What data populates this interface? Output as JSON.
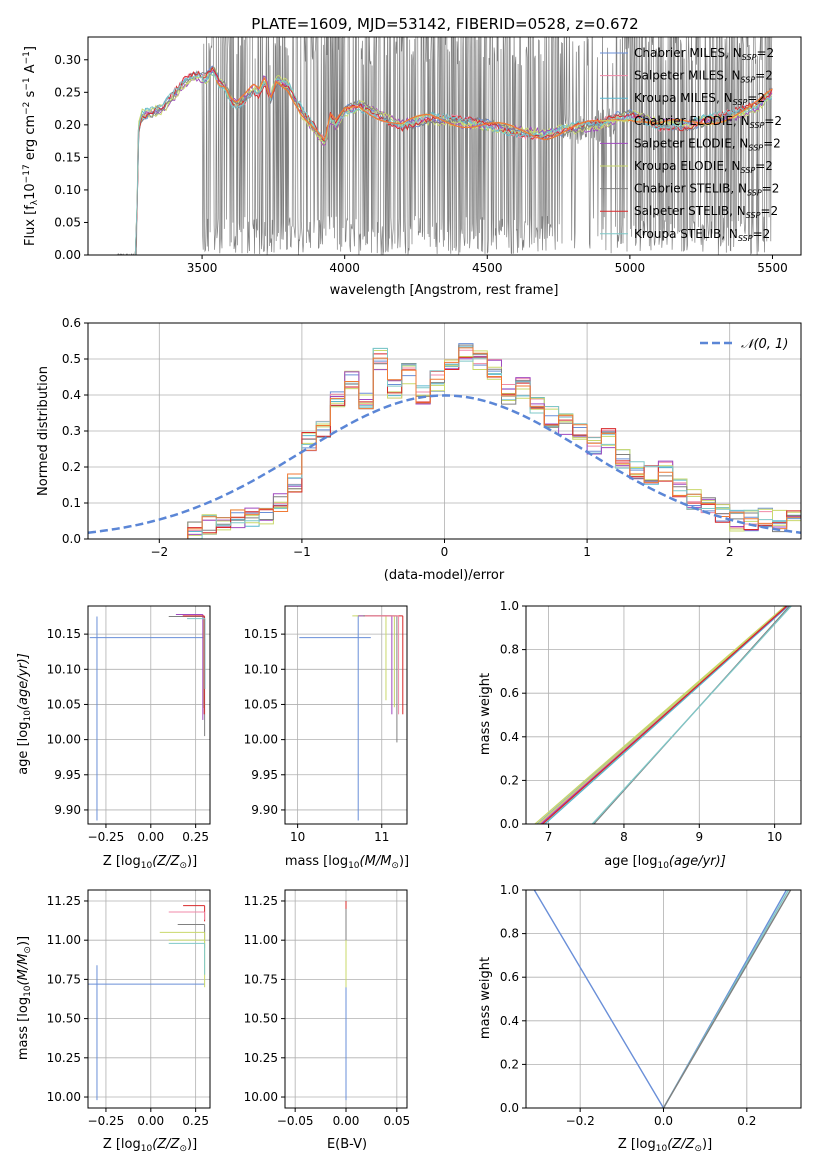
{
  "figure": {
    "title": "PLATE=1609, MJD=53142, FIBERID=0528, z=0.672",
    "legend_labels": [
      "Chabrier MILES",
      "Salpeter MILES",
      "Kroupa MILES",
      "Chabrier ELODIE",
      "Salpeter ELODIE",
      "Kroupa ELODIE",
      "Chabrier STELIB",
      "Salpeter STELIB",
      "Kroupa STELIB"
    ],
    "legend_suffix_base": ", N",
    "legend_suffix_sub": "SSP",
    "legend_suffix_tail": "=2"
  },
  "colors": {
    "model_series": [
      "#6a8fd8",
      "#f08aa8",
      "#59b8cf",
      "#c8d86a",
      "#a04ac0",
      "#c9d86b",
      "#808080",
      "#d8282a",
      "#7fc8c8"
    ],
    "spectrum_data": "#7f7f7f",
    "best_fit": "#f07a35",
    "normal_curve": "#5b86d6",
    "grid": "#b0b0b0"
  },
  "chart_data": [
    {
      "id": "spectrum",
      "type": "line",
      "xlabel": "wavelength [Angstrom, rest frame]",
      "ylabel_main": "Flux [f",
      "ylabel_sym": "λ",
      "ylabel_mid": "10",
      "ylabel_sup1": "−17",
      "ylabel_tail": " erg cm",
      "ylabel_sup2": "−2",
      "ylabel_s": " s",
      "ylabel_sup3": "−1",
      "ylabel_a": " A",
      "ylabel_sup4": "−1",
      "ylabel_end": "]",
      "xlim": [
        3100,
        5600
      ],
      "ylim": [
        0,
        0.335
      ],
      "xticks": [
        3500,
        4000,
        4500,
        5000,
        5500
      ],
      "yticks": [
        0.0,
        0.05,
        0.1,
        0.15,
        0.2,
        0.25,
        0.3
      ],
      "ytick_labels": [
        "0.00",
        "0.05",
        "0.10",
        "0.15",
        "0.20",
        "0.25",
        "0.30"
      ],
      "grid": false,
      "legend": "upper right",
      "model_curve": {
        "x": [
          3200,
          3270,
          3275,
          3290,
          3320,
          3360,
          3400,
          3440,
          3480,
          3510,
          3540,
          3560,
          3580,
          3600,
          3620,
          3650,
          3680,
          3700,
          3720,
          3740,
          3760,
          3800,
          3850,
          3900,
          3930,
          3950,
          3970,
          4000,
          4050,
          4100,
          4150,
          4200,
          4300,
          4400,
          4500,
          4600,
          4700,
          4800,
          4900,
          4950,
          5000,
          5050,
          5100,
          5200,
          5300,
          5400,
          5450,
          5500
        ],
        "y": [
          0.0,
          0.0,
          0.19,
          0.215,
          0.22,
          0.225,
          0.245,
          0.265,
          0.275,
          0.27,
          0.285,
          0.265,
          0.26,
          0.24,
          0.23,
          0.24,
          0.255,
          0.25,
          0.27,
          0.24,
          0.27,
          0.26,
          0.22,
          0.19,
          0.17,
          0.21,
          0.2,
          0.22,
          0.23,
          0.22,
          0.21,
          0.2,
          0.21,
          0.205,
          0.2,
          0.19,
          0.185,
          0.195,
          0.2,
          0.21,
          0.215,
          0.21,
          0.2,
          0.2,
          0.21,
          0.22,
          0.23,
          0.25
        ]
      }
    },
    {
      "id": "residuals",
      "type": "histogram",
      "xlabel": "(data-model)/error",
      "ylabel": "Normed distribution",
      "xlim": [
        -2.5,
        2.5
      ],
      "ylim": [
        0,
        0.6
      ],
      "xticks": [
        -2,
        -1,
        0,
        1,
        2
      ],
      "xtick_labels": [
        "−2",
        "−1",
        "0",
        "1",
        "2"
      ],
      "yticks": [
        0.0,
        0.1,
        0.2,
        0.3,
        0.4,
        0.5,
        0.6
      ],
      "ytick_labels": [
        "0.0",
        "0.1",
        "0.2",
        "0.3",
        "0.4",
        "0.5",
        "0.6"
      ],
      "grid": true,
      "legend": "upper right",
      "normal_label": "𝒩(0, 1)",
      "hist": {
        "edges": [
          -1.8,
          -1.7,
          -1.6,
          -1.5,
          -1.4,
          -1.3,
          -1.2,
          -1.1,
          -1.0,
          -0.9,
          -0.8,
          -0.7,
          -0.6,
          -0.5,
          -0.4,
          -0.3,
          -0.2,
          -0.1,
          0.0,
          0.1,
          0.2,
          0.3,
          0.4,
          0.5,
          0.6,
          0.7,
          0.8,
          0.9,
          1.0,
          1.1,
          1.2,
          1.3,
          1.4,
          1.5,
          1.6,
          1.7,
          1.8,
          1.9,
          2.0,
          2.1,
          2.2,
          2.3,
          2.4,
          2.5
        ],
        "values": [
          0.02,
          0.04,
          0.05,
          0.06,
          0.06,
          0.07,
          0.1,
          0.16,
          0.27,
          0.3,
          0.38,
          0.44,
          0.38,
          0.5,
          0.42,
          0.46,
          0.4,
          0.44,
          0.5,
          0.52,
          0.5,
          0.47,
          0.4,
          0.42,
          0.37,
          0.34,
          0.32,
          0.3,
          0.26,
          0.28,
          0.22,
          0.19,
          0.18,
          0.19,
          0.14,
          0.11,
          0.09,
          0.07,
          0.05,
          0.05,
          0.06,
          0.05,
          0.05
        ]
      }
    },
    {
      "id": "age_vs_Z",
      "type": "scatter",
      "xlabel_main": "Z [log",
      "xlabel_sub": "10",
      "xlabel_tail": "(Z/Z",
      "xlabel_sun": "⊙",
      "xlabel_end": ")]",
      "ylabel_main": "age  [log",
      "ylabel_sub": "10",
      "ylabel_tail": "(age/yr)]",
      "xlim": [
        -0.35,
        0.33
      ],
      "ylim": [
        9.88,
        10.19
      ],
      "xticks": [
        -0.25,
        0.0,
        0.25
      ],
      "xtick_labels": [
        "−0.25",
        "0.00",
        "0.25"
      ],
      "yticks": [
        9.9,
        9.95,
        10.0,
        10.05,
        10.1,
        10.15
      ],
      "ytick_labels": [
        "9.90",
        "9.95",
        "10.00",
        "10.05",
        "10.10",
        "10.15"
      ],
      "grid": true
    },
    {
      "id": "age_vs_mass",
      "type": "scatter",
      "xlabel_main": "mass [log",
      "xlabel_sub": "10",
      "xlabel_tail": "(M/M",
      "xlabel_sun": "⊙",
      "xlabel_end": ")]",
      "xlim": [
        9.85,
        11.3
      ],
      "ylim": [
        9.88,
        10.19
      ],
      "xticks": [
        10,
        11
      ],
      "xtick_labels": [
        "10",
        "11"
      ],
      "yticks": [
        9.9,
        9.95,
        10.0,
        10.05,
        10.1,
        10.15
      ],
      "ytick_labels": [
        "9.90",
        "9.95",
        "10.00",
        "10.05",
        "10.10",
        "10.15"
      ],
      "grid": true
    },
    {
      "id": "massweight_vs_age",
      "type": "line",
      "xlabel_main": "age  [log",
      "xlabel_sub": "10",
      "xlabel_tail": "(age/yr)]",
      "ylabel": "mass weight",
      "xlim": [
        6.7,
        10.35
      ],
      "ylim": [
        0,
        1
      ],
      "xticks": [
        7,
        8,
        9,
        10
      ],
      "xtick_labels": [
        "7",
        "8",
        "9",
        "10"
      ],
      "yticks": [
        0.0,
        0.2,
        0.4,
        0.6,
        0.8,
        1.0
      ],
      "ytick_labels": [
        "0.0",
        "0.2",
        "0.4",
        "0.6",
        "0.8",
        "1.0"
      ],
      "grid": true,
      "series": [
        {
          "x": [
            6.85,
            10.15
          ],
          "y": [
            0,
            1
          ]
        },
        {
          "x": [
            6.88,
            10.16
          ],
          "y": [
            0,
            1
          ]
        },
        {
          "x": [
            6.95,
            10.18
          ],
          "y": [
            0,
            1
          ]
        },
        {
          "x": [
            6.82,
            10.14
          ],
          "y": [
            0,
            1
          ]
        },
        {
          "x": [
            6.9,
            10.17
          ],
          "y": [
            0,
            1
          ]
        },
        {
          "x": [
            6.86,
            10.15
          ],
          "y": [
            0,
            1
          ]
        },
        {
          "x": [
            7.6,
            10.2
          ],
          "y": [
            0,
            1
          ]
        },
        {
          "x": [
            6.92,
            10.16
          ],
          "y": [
            0,
            1
          ]
        },
        {
          "x": [
            7.58,
            10.22
          ],
          "y": [
            0,
            1
          ]
        }
      ]
    },
    {
      "id": "mass_vs_Z",
      "type": "scatter",
      "xlabel_main": "Z [log",
      "xlabel_sub": "10",
      "xlabel_tail": "(Z/Z",
      "xlabel_sun": "⊙",
      "xlabel_end": ")]",
      "ylabel_main": "mass [log",
      "ylabel_sub": "10",
      "ylabel_tail": "(M/M",
      "ylabel_sun": "⊙",
      "ylabel_end": ")]",
      "xlim": [
        -0.35,
        0.33
      ],
      "ylim": [
        9.93,
        11.32
      ],
      "xticks": [
        -0.25,
        0.0,
        0.25
      ],
      "xtick_labels": [
        "−0.25",
        "0.00",
        "0.25"
      ],
      "yticks": [
        10.0,
        10.25,
        10.5,
        10.75,
        11.0,
        11.25
      ],
      "ytick_labels": [
        "10.00",
        "10.25",
        "10.50",
        "10.75",
        "11.00",
        "11.25"
      ],
      "grid": true
    },
    {
      "id": "mass_vs_EBV",
      "type": "scatter",
      "xlabel": "E(B-V)",
      "xlim": [
        -0.06,
        0.06
      ],
      "ylim": [
        9.93,
        11.32
      ],
      "xticks": [
        -0.05,
        0.0,
        0.05
      ],
      "xtick_labels": [
        "−0.05",
        "0.00",
        "0.05"
      ],
      "yticks": [
        10.0,
        10.25,
        10.5,
        10.75,
        11.0,
        11.25
      ],
      "ytick_labels": [
        "10.00",
        "10.25",
        "10.50",
        "10.75",
        "11.00",
        "11.25"
      ],
      "grid": true
    },
    {
      "id": "massweight_vs_Z",
      "type": "line",
      "xlabel_main": "Z [log",
      "xlabel_sub": "10",
      "xlabel_tail": "(Z/Z",
      "xlabel_sun": "⊙",
      "xlabel_end": ")]",
      "ylabel": "mass weight",
      "xlim": [
        -0.33,
        0.33
      ],
      "ylim": [
        0,
        1
      ],
      "xticks": [
        -0.2,
        0.0,
        0.2
      ],
      "xtick_labels": [
        "−0.2",
        "0.0",
        "0.2"
      ],
      "yticks": [
        0.0,
        0.2,
        0.4,
        0.6,
        0.8,
        1.0
      ],
      "ytick_labels": [
        "0.0",
        "0.2",
        "0.4",
        "0.6",
        "0.8",
        "1.0"
      ],
      "grid": true,
      "series": [
        {
          "x": [
            -0.31,
            0.0,
            0.295
          ],
          "y": [
            1,
            0,
            1
          ]
        },
        {
          "x": [
            0.0,
            0.3
          ],
          "y": [
            0,
            1
          ]
        },
        {
          "x": [
            0.0,
            0.305
          ],
          "y": [
            0,
            1
          ]
        }
      ]
    }
  ]
}
